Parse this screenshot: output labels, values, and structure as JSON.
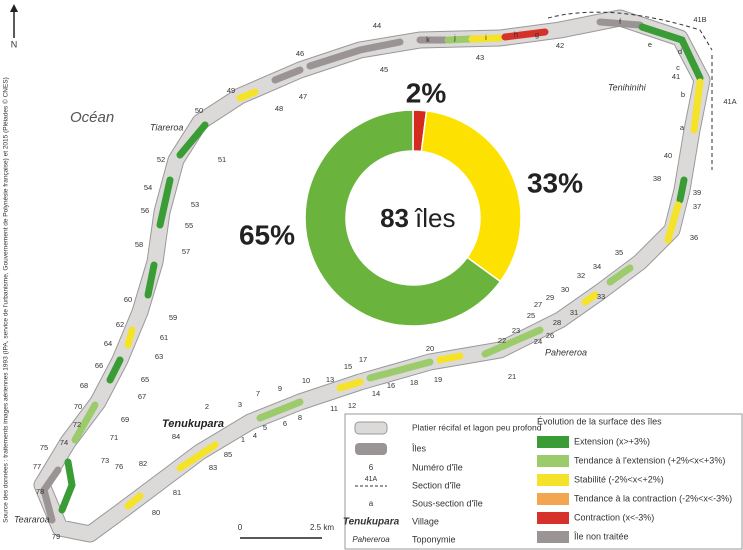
{
  "north": "N",
  "source": "Source des données : traitements images aériennes 1993 (IPA, service de l'urbanisme, Gouvernement de Polynésie française) et 2015 (Pléiades © CNES)",
  "ocean_label": "Océan",
  "place_names": [
    "Tiareroa",
    "Tenihinihi",
    "Pahereroa",
    "Teararoa"
  ],
  "village": "Tenukupara",
  "island_numbers": [
    "1",
    "2",
    "3",
    "4",
    "5",
    "6",
    "7",
    "8",
    "9",
    "10",
    "11",
    "12",
    "13",
    "14",
    "15",
    "16",
    "17",
    "18",
    "19",
    "20",
    "21",
    "22",
    "23",
    "24",
    "25",
    "26",
    "27",
    "28",
    "29",
    "30",
    "31",
    "32",
    "33",
    "34",
    "35",
    "36",
    "37",
    "38",
    "39",
    "40",
    "41",
    "42",
    "43",
    "44",
    "45",
    "46",
    "47",
    "48",
    "49",
    "50",
    "51",
    "52",
    "53",
    "54",
    "55",
    "56",
    "57",
    "58",
    "59",
    "60",
    "61",
    "62",
    "63",
    "64",
    "65",
    "66",
    "67",
    "68",
    "69",
    "70",
    "71",
    "72",
    "73",
    "74",
    "75",
    "76",
    "77",
    "78",
    "79",
    "80",
    "81",
    "82",
    "83",
    "84",
    "85",
    "41A",
    "41B"
  ],
  "subsections": [
    "a",
    "b",
    "c",
    "d",
    "e",
    "f",
    "g",
    "h",
    "i",
    "j",
    "k"
  ],
  "chart_data": {
    "type": "pie",
    "values": [
      2,
      33,
      65
    ],
    "value_labels": [
      "2%",
      "33%",
      "65%"
    ],
    "colors": [
      "#d52b1e",
      "#fde100",
      "#6ab43e"
    ],
    "center_count": 83,
    "center_unit": "îles"
  },
  "legend": {
    "items": [
      {
        "label": "Platier récifal et lagon peu profond"
      },
      {
        "label": "Îles"
      },
      {
        "symbol": "6",
        "label": "Numéro d'île"
      },
      {
        "symbol": "41A",
        "label": "Section d'île"
      },
      {
        "symbol": "a",
        "label": "Sous-section d'île"
      },
      {
        "symbol": "Tenukupara",
        "label": "Village"
      },
      {
        "symbol": "Pahereroa",
        "label": "Toponymie"
      }
    ],
    "evolution_title": "Évolution de la surface des îles",
    "evolution": [
      {
        "label": "Extension (x>+3%)",
        "color": "#3a9c35"
      },
      {
        "label": "Tendance à l'extension (+2%<x<+3%)",
        "color": "#9ccb6b"
      },
      {
        "label": "Stabilité (-2%<x<+2%)",
        "color": "#f5e32a"
      },
      {
        "label": "Tendance à la contraction (-2%<x<-3%)",
        "color": "#f2a650"
      },
      {
        "label": "Contraction (x<-3%)",
        "color": "#d7322a"
      },
      {
        "label": "Île non traitée",
        "color": "#9a9494"
      }
    ]
  },
  "scale": {
    "start": "0",
    "end": "2.5 km"
  }
}
